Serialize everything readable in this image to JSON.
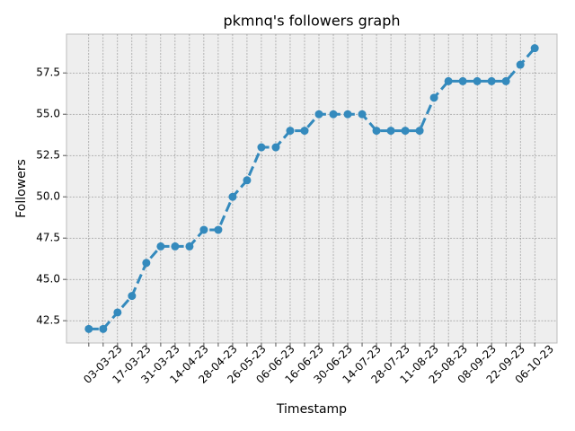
{
  "chart_data": {
    "type": "line",
    "title": "pkmnq's followers graph",
    "x_label": "Timestamp",
    "y_label": "Followers",
    "categories": [
      null,
      "03-03-23",
      null,
      "17-03-23",
      null,
      "31-03-23",
      null,
      "14-04-23",
      null,
      "28-04-23",
      null,
      "26-05-23",
      null,
      "06-06-23",
      null,
      "16-06-23",
      null,
      "30-06-23",
      null,
      "14-07-23",
      null,
      "28-07-23",
      null,
      "11-08-23",
      null,
      "25-08-23",
      null,
      "08-09-23",
      null,
      "22-09-23",
      null,
      "06-10-23"
    ],
    "series": [
      {
        "name": "Followers",
        "color": "#348ABD",
        "values": [
          42,
          42,
          43,
          44,
          46,
          47,
          47,
          47,
          48,
          48,
          50,
          51,
          53,
          53,
          54,
          54,
          55,
          55,
          55,
          55,
          54,
          54,
          54,
          54,
          56,
          57,
          57,
          57,
          57,
          57,
          58,
          59
        ]
      }
    ],
    "ylim": [
      41.15,
      59.85
    ],
    "yticks": [
      42.5,
      {
        "value": 45,
        "label": "45.0"
      },
      47.5,
      {
        "value": 50,
        "label": "50.0"
      },
      52.5,
      {
        "value": 55,
        "label": "55.0"
      },
      57.5
    ],
    "grid": true
  }
}
